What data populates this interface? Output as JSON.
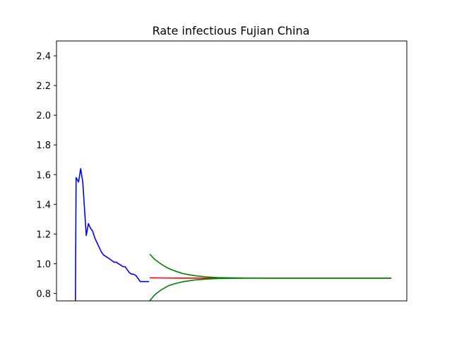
{
  "chart_data": {
    "type": "line",
    "title": "Rate infectious Fujian China",
    "xlabel": "",
    "ylabel": "",
    "ylim": [
      0.75,
      2.5
    ],
    "xlim": [
      0,
      100
    ],
    "yticks": [
      0.8,
      1.0,
      1.2,
      1.4,
      1.6,
      1.8,
      2.0,
      2.2,
      2.4
    ],
    "ytick_labels": [
      "0.8",
      "1.0",
      "1.2",
      "1.4",
      "1.6",
      "1.8",
      "2.0",
      "2.2",
      "2.4"
    ],
    "grid": false,
    "series": [
      {
        "color": "#0000ff",
        "x": [
          5.4,
          5.6,
          6.3,
          6.9,
          7.5,
          8.5,
          9.1,
          9.7,
          10.3,
          11.0,
          11.6,
          12.2,
          12.8,
          13.4,
          14.0,
          14.7,
          15.3,
          15.9,
          16.5,
          17.1,
          17.7,
          18.4,
          19.0,
          19.6,
          20.2,
          20.8,
          21.4,
          22.0,
          22.7,
          23.3,
          23.9,
          24.5,
          25.1,
          25.7,
          26.4
        ],
        "y": [
          0.75,
          1.58,
          1.55,
          1.64,
          1.55,
          1.19,
          1.27,
          1.24,
          1.22,
          1.17,
          1.14,
          1.11,
          1.08,
          1.06,
          1.05,
          1.04,
          1.03,
          1.02,
          1.01,
          1.01,
          1.0,
          0.99,
          0.98,
          0.98,
          0.96,
          0.94,
          0.93,
          0.93,
          0.92,
          0.9,
          0.88,
          0.88,
          0.88,
          0.88,
          0.88
        ]
      },
      {
        "color": "#ff0000",
        "x": [
          26.6,
          30,
          35,
          40,
          45,
          50,
          60,
          70,
          80,
          90,
          95.6
        ],
        "y": [
          0.905,
          0.904,
          0.903,
          0.903,
          0.903,
          0.903,
          0.903,
          0.903,
          0.903,
          0.903,
          0.903
        ]
      },
      {
        "color": "#008000",
        "x": [
          26.6,
          28,
          30,
          32,
          34,
          36,
          38,
          40,
          43,
          46,
          50,
          55,
          60,
          70,
          80,
          90,
          95.6
        ],
        "y": [
          1.065,
          1.03,
          0.995,
          0.968,
          0.95,
          0.934,
          0.925,
          0.918,
          0.911,
          0.907,
          0.905,
          0.904,
          0.903,
          0.903,
          0.903,
          0.903,
          0.903
        ]
      },
      {
        "color": "#008000",
        "x": [
          26.6,
          28,
          30,
          32,
          34,
          36,
          38,
          40,
          43,
          46,
          50,
          55,
          60,
          70,
          80,
          90,
          95.6
        ],
        "y": [
          0.75,
          0.79,
          0.826,
          0.852,
          0.867,
          0.878,
          0.886,
          0.892,
          0.897,
          0.9,
          0.902,
          0.903,
          0.903,
          0.903,
          0.903,
          0.903,
          0.903
        ]
      }
    ]
  }
}
